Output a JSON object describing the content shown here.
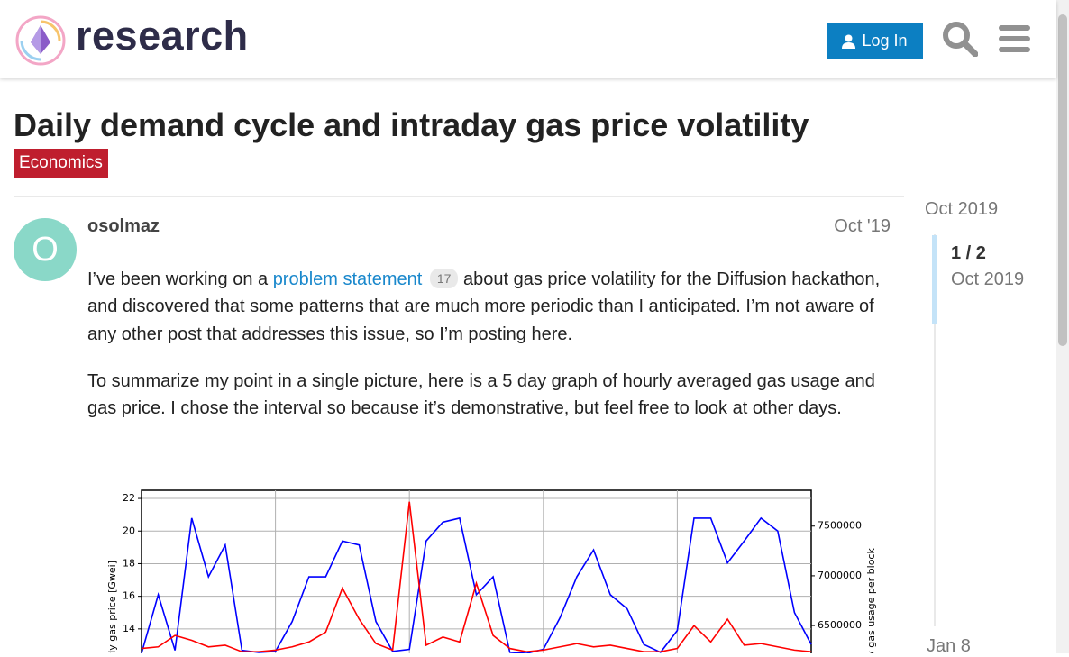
{
  "header": {
    "logo_text": "research",
    "login": "Log In"
  },
  "topic": {
    "title": "Daily demand cycle and intraday gas price volatility",
    "category": "Economics"
  },
  "post": {
    "avatar_letter": "O",
    "author": "osolmaz",
    "date": "Oct '19",
    "p1_before": "I’ve been working on a ",
    "link": "problem statement",
    "link_count": 17,
    "p1_after": " about gas price volatility for the Diffusion hackathon, and discovered that some patterns that are much more periodic than I anticipated. I’m not aware of any other post that addresses this issue, so I’m posting here.",
    "p2": "To summarize my point in a single picture, here is a 5 day graph of hourly averaged gas usage and gas price. I chose the interval so because it’s demonstrative, but feel free to look at other days."
  },
  "timeline": {
    "start": "Oct 2019",
    "position": "1 / 2",
    "position_date": "Oct 2019",
    "end": "Jan 8"
  },
  "chart_data": {
    "type": "line",
    "ylabel": "hourly gas price [Gwei]",
    "y2label": "hourly gas usage per block",
    "x": [
      0,
      3,
      6,
      9,
      12,
      15,
      18,
      21,
      24,
      27,
      30,
      33,
      36,
      39,
      42,
      45,
      48,
      51,
      54,
      57,
      60,
      63,
      66,
      69,
      72,
      75,
      78,
      81,
      84,
      87,
      90,
      93,
      96,
      99,
      102,
      105,
      108,
      111,
      114,
      117,
      120
    ],
    "xlim": [
      0,
      120
    ],
    "xticks": [
      24,
      48,
      72,
      96
    ],
    "ylim": [
      12.5,
      22.5
    ],
    "yticks": [
      14,
      16,
      18,
      20,
      22
    ],
    "y2lim": [
      6220000,
      7860000
    ],
    "y2ticks": [
      6500000,
      7000000,
      7500000
    ],
    "grid": true,
    "series": [
      {
        "name": "gas usage",
        "color": "#0000ff",
        "axis": "y2",
        "values": [
          6220000,
          6810000,
          6250000,
          7580000,
          6990000,
          7310000,
          6250000,
          6230000,
          6240000,
          6540000,
          6990000,
          6990000,
          7350000,
          7310000,
          6540000,
          6240000,
          6260000,
          7350000,
          7540000,
          7580000,
          6810000,
          6990000,
          6230000,
          6220000,
          6260000,
          6580000,
          6990000,
          7260000,
          6810000,
          6670000,
          6310000,
          6230000,
          6450000,
          7580000,
          7580000,
          7130000,
          7350000,
          7580000,
          7450000,
          6630000,
          6310000
        ]
      },
      {
        "name": "gas price",
        "color": "#ff0000",
        "values": [
          12.8,
          12.9,
          13.6,
          13.3,
          12.9,
          13.0,
          12.6,
          12.6,
          12.7,
          12.9,
          13.2,
          13.8,
          16.5,
          14.6,
          13.1,
          12.7,
          21.8,
          13.0,
          13.5,
          13.2,
          16.8,
          13.6,
          12.8,
          12.6,
          12.7,
          12.9,
          13.1,
          12.9,
          13.0,
          12.8,
          12.6,
          12.6,
          12.8,
          14.2,
          13.2,
          14.6,
          13.0,
          13.1,
          12.9,
          12.7,
          12.6
        ]
      }
    ]
  }
}
